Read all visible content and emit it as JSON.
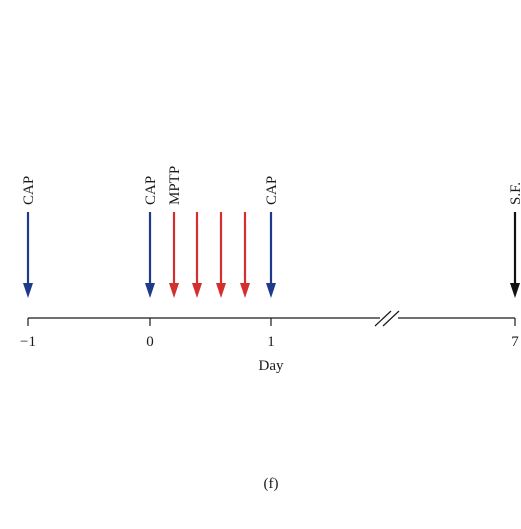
{
  "timeline": {
    "axis_label": "Day",
    "ticks": [
      {
        "label": "−1"
      },
      {
        "label": "0"
      },
      {
        "label": "1"
      },
      {
        "label": "7"
      }
    ],
    "events": [
      {
        "name": "cap-arrow-day-minus1",
        "label": "CAP",
        "color": "#1f3a8a"
      },
      {
        "name": "cap-arrow-day-0",
        "label": "CAP",
        "color": "#1f3a8a"
      },
      {
        "name": "mptp-arrow-1",
        "label": "MPTP",
        "color": "#d32f2f"
      },
      {
        "name": "mptp-arrow-2",
        "label": "",
        "color": "#d32f2f"
      },
      {
        "name": "mptp-arrow-3",
        "label": "",
        "color": "#d32f2f"
      },
      {
        "name": "mptp-arrow-4",
        "label": "",
        "color": "#d32f2f"
      },
      {
        "name": "cap-arrow-day-1",
        "label": "CAP",
        "color": "#1f3a8a"
      },
      {
        "name": "sf-arrow-day-7",
        "label": "S.F.",
        "color": "#111111"
      }
    ]
  },
  "panel_label": "(f)"
}
